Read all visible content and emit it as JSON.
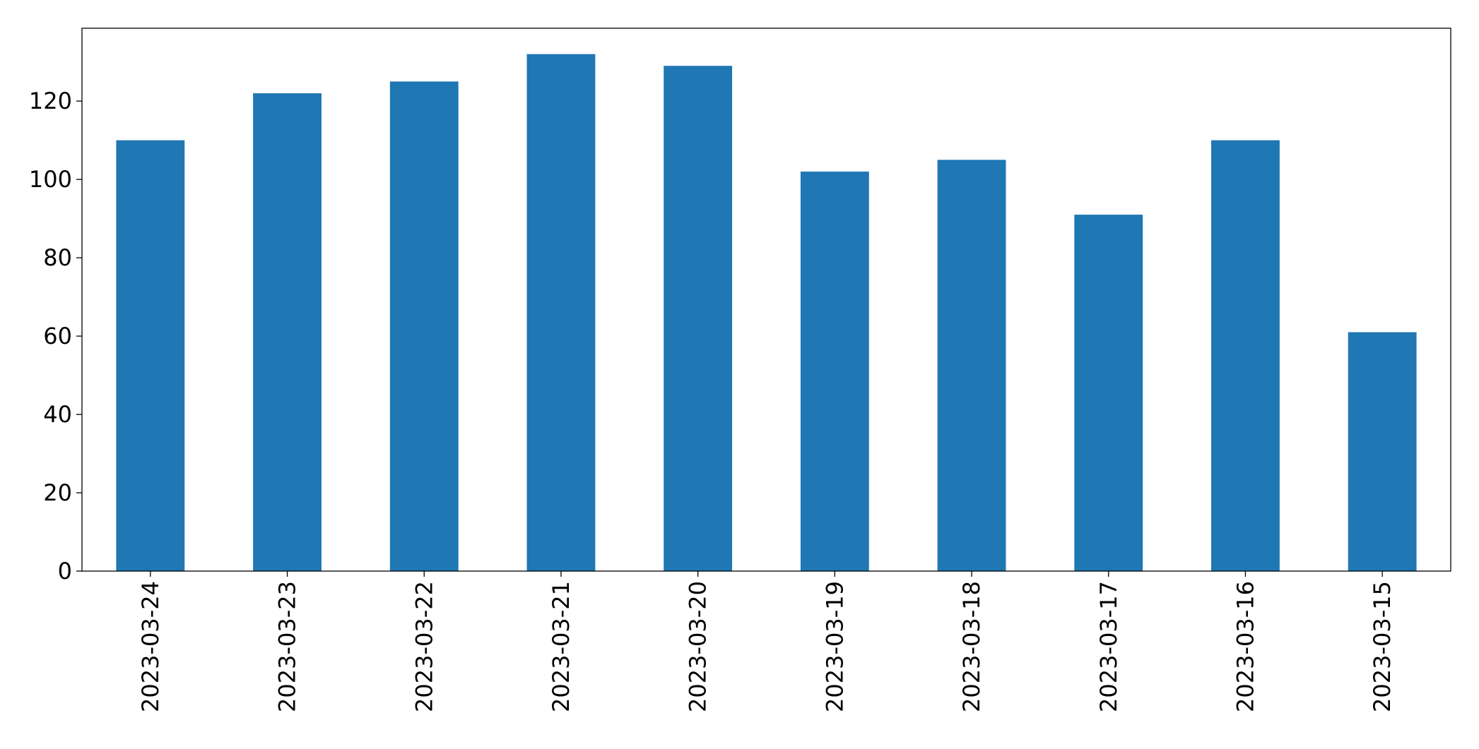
{
  "chart_data": {
    "type": "bar",
    "categories": [
      "2023-03-24",
      "2023-03-23",
      "2023-03-22",
      "2023-03-21",
      "2023-03-20",
      "2023-03-19",
      "2023-03-18",
      "2023-03-17",
      "2023-03-16",
      "2023-03-15"
    ],
    "values": [
      110,
      122,
      125,
      132,
      129,
      102,
      105,
      91,
      110,
      61
    ],
    "color": "#1f77b4",
    "ylim": [
      0,
      138.6
    ],
    "yticks": [
      0,
      20,
      40,
      60,
      80,
      100,
      120
    ],
    "grid": false
  }
}
